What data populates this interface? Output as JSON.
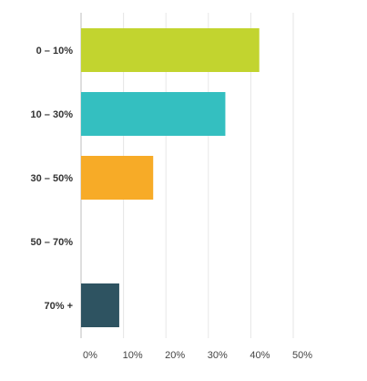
{
  "chart_data": {
    "type": "bar",
    "orientation": "horizontal",
    "categories": [
      "0 – 10%",
      "10 – 30%",
      "30 – 50%",
      "50 – 70%",
      "70% +"
    ],
    "values": [
      42,
      34,
      17,
      0,
      9
    ],
    "x_ticks": [
      "0%",
      "10%",
      "20%",
      "30%",
      "40%",
      "50%"
    ],
    "xlim": [
      0,
      55
    ],
    "grid": true,
    "colors": [
      "#c2d42f",
      "#34bfc0",
      "#f7ab27",
      "#f7ab27",
      "#2e5361"
    ]
  }
}
